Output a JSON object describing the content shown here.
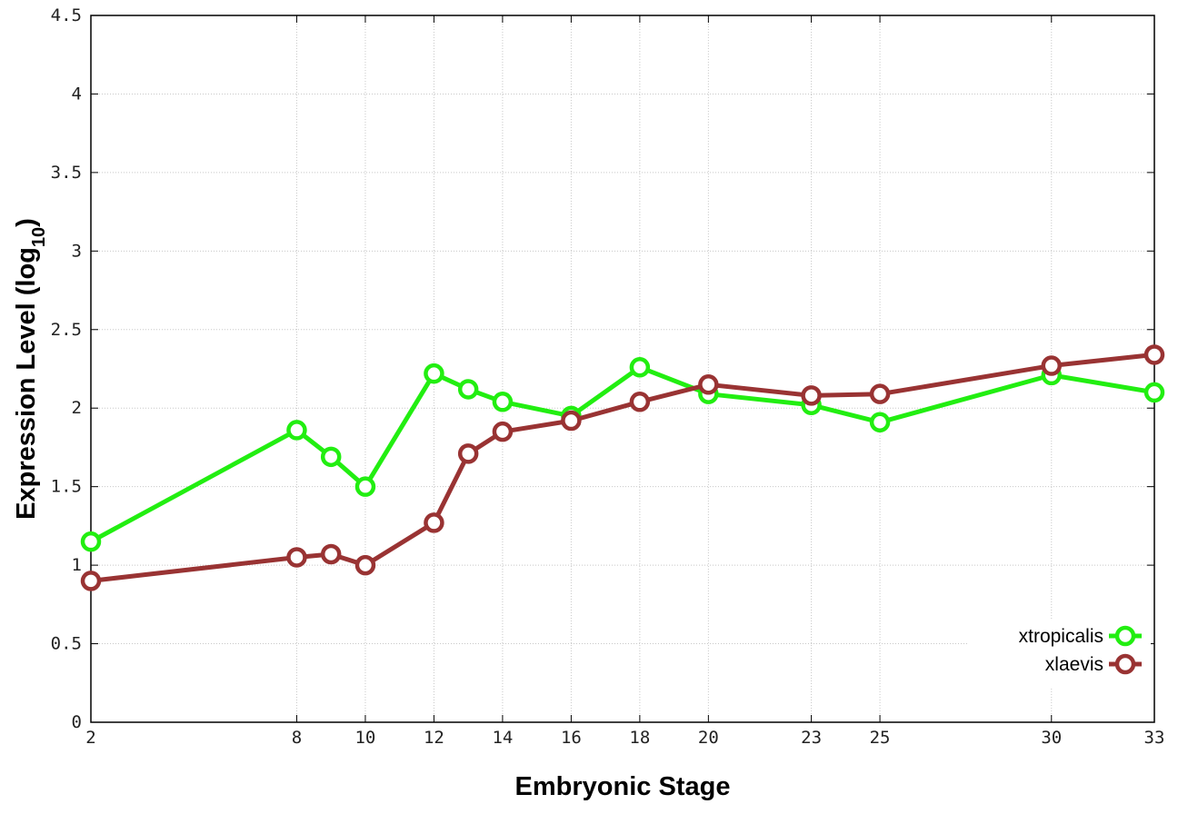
{
  "chart_data": {
    "type": "line",
    "xlabel": "Embryonic Stage",
    "ylabel": "Expression Level (log",
    "ylabel_sub": "10",
    "ylabel_close": ")",
    "x": [
      2,
      8,
      9,
      10,
      12,
      13,
      14,
      16,
      18,
      20,
      23,
      25,
      30,
      33
    ],
    "x_ticks": [
      2,
      8,
      10,
      12,
      14,
      16,
      18,
      20,
      23,
      25,
      30,
      33
    ],
    "y_ticks": [
      "0",
      "0.5",
      "1",
      "1.5",
      "2",
      "2.5",
      "3",
      "3.5",
      "4",
      "4.5"
    ],
    "xlim": [
      2,
      33
    ],
    "ylim": [
      0,
      4.5
    ],
    "grid": true,
    "legend_position": "bottom-right",
    "series": [
      {
        "name": "xtropicalis",
        "color": "#22ee11",
        "values": [
          1.15,
          1.86,
          1.69,
          1.5,
          2.22,
          2.12,
          2.04,
          1.95,
          2.26,
          2.09,
          2.02,
          1.91,
          2.21,
          2.1
        ]
      },
      {
        "name": "xlaevis",
        "color": "#993333",
        "values": [
          0.9,
          1.05,
          1.07,
          1.0,
          1.27,
          1.71,
          1.85,
          1.92,
          2.04,
          2.15,
          2.08,
          2.09,
          2.27,
          2.34
        ]
      }
    ]
  }
}
